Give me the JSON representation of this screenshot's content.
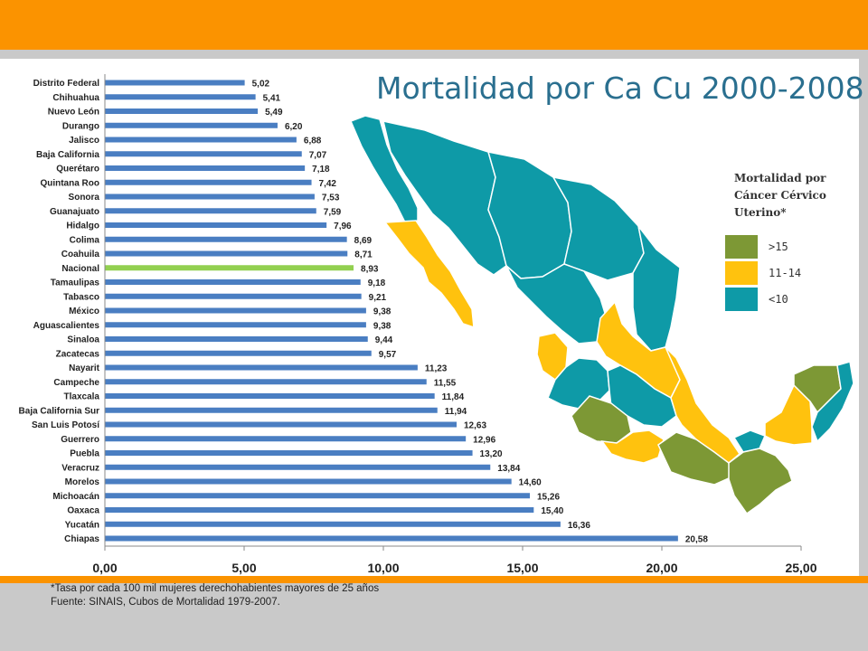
{
  "colors": {
    "top_bar": "#fb9300",
    "bar": "#4a7ec2",
    "highlight_bar": "#92d050",
    "high": "#7d9835",
    "mid": "#ffc20e",
    "low": "#0e9aa7"
  },
  "chart_data": {
    "type": "bar",
    "orientation": "horizontal",
    "title": "Mortalidad por Ca Cu 2000-2008",
    "xlabel": "",
    "ylabel": "",
    "xlim": [
      0,
      25
    ],
    "x_ticks": [
      "0,00",
      "5,00",
      "10,00",
      "15,00",
      "20,00",
      "25,00"
    ],
    "categories": [
      "Distrito Federal",
      "Chihuahua",
      "Nuevo León",
      "Durango",
      "Jalisco",
      "Baja California",
      "Querétaro",
      "Quintana Roo",
      "Sonora",
      "Guanajuato",
      "Hidalgo",
      "Colima",
      "Coahuila",
      "Nacional",
      "Tamaulipas",
      "Tabasco",
      "México",
      "Aguascalientes",
      "Sinaloa",
      "Zacatecas",
      "Nayarit",
      "Campeche",
      "Tlaxcala",
      "Baja California Sur",
      "San Luis Potosí",
      "Guerrero",
      "Puebla",
      "Veracruz",
      "Morelos",
      "Michoacán",
      "Oaxaca",
      "Yucatán",
      "Chiapas"
    ],
    "values": [
      5.02,
      5.41,
      5.49,
      6.2,
      6.88,
      7.07,
      7.18,
      7.42,
      7.53,
      7.59,
      7.96,
      8.69,
      8.71,
      8.93,
      9.18,
      9.21,
      9.38,
      9.38,
      9.44,
      9.57,
      11.23,
      11.55,
      11.84,
      11.94,
      12.63,
      12.96,
      13.2,
      13.84,
      14.6,
      15.26,
      15.4,
      16.36,
      20.58
    ],
    "value_labels": [
      "5,02",
      "5,41",
      "5,49",
      "6,20",
      "6,88",
      "7,07",
      "7,18",
      "7,42",
      "7,53",
      "7,59",
      "7,96",
      "8,69",
      "8,71",
      "8,93",
      "9,18",
      "9,21",
      "9,38",
      "9,38",
      "9,44",
      "9,57",
      "11,23",
      "11,55",
      "11,84",
      "11,94",
      "12,63",
      "12,96",
      "13,20",
      "13,84",
      "14,60",
      "15,26",
      "15,40",
      "16,36",
      "20,58"
    ],
    "highlight_category": "Nacional",
    "grid": false
  },
  "legend": {
    "title_lines": [
      "Mortalidad por",
      "Cáncer Cérvico",
      "Uterino*"
    ],
    "items": [
      {
        "label": ">15",
        "color": "#7d9835"
      },
      {
        "label": "11-14",
        "color": "#ffc20e"
      },
      {
        "label": "<10",
        "color": "#0e9aa7"
      }
    ]
  },
  "footnotes": {
    "line1": "*Tasa por cada 100 mil mujeres derechohabientes mayores de 25 años",
    "line2": "Fuente: SINAIS, Cubos de Mortalidad 1979-2007."
  }
}
